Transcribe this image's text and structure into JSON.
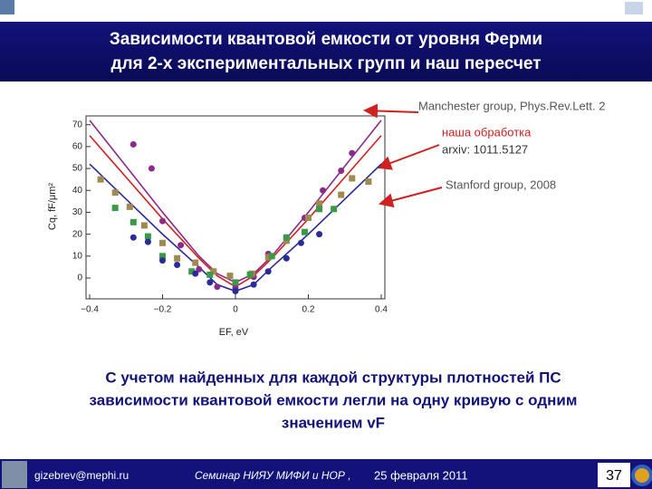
{
  "header": {
    "title": [
      "Зависимости  квантовой емкости от уровня  Ферми",
      "для 2-х экспериментальных групп и наш пересчет"
    ]
  },
  "chart_data": {
    "type": "line",
    "xlabel": "EF, eV",
    "ylabel": "Cq, fF/μm²",
    "xlim": [
      -0.41,
      0.41
    ],
    "ylim": [
      -9.5,
      74
    ],
    "xticks": [
      {
        "value": -0.4,
        "label": "−0.4"
      },
      {
        "value": -0.2,
        "label": "−0.2"
      },
      0,
      0.2,
      0.4
    ],
    "yticks": [
      0,
      10,
      20,
      30,
      40,
      50,
      60,
      70
    ],
    "annotations": [
      "Manchester group,  Phys.Rev.Lett. 2",
      "наша обработка",
      "arxiv: 1011.5127",
      "Stanford  group, 2008"
    ],
    "series": [
      {
        "style": "line",
        "color": "#8b2a8b",
        "x": [
          -0.4,
          -0.3,
          -0.2,
          -0.1,
          -0.05,
          0,
          0.05,
          0.1,
          0.2,
          0.3,
          0.4
        ],
        "values": [
          72,
          51,
          30,
          10,
          2,
          -2,
          2,
          10,
          30,
          51,
          72
        ]
      },
      {
        "style": "line",
        "color": "#d02020",
        "x": [
          -0.4,
          -0.3,
          -0.2,
          -0.1,
          -0.05,
          0,
          0.05,
          0.1,
          0.2,
          0.3,
          0.4
        ],
        "values": [
          65,
          46,
          27,
          9,
          1,
          -4,
          1,
          9,
          27,
          46,
          65
        ]
      },
      {
        "style": "line",
        "color": "#2a2a9a",
        "x": [
          -0.4,
          -0.3,
          -0.2,
          -0.1,
          -0.05,
          0,
          0.05,
          0.1,
          0.2,
          0.3,
          0.4
        ],
        "values": [
          52,
          36,
          20,
          5,
          -3,
          -6,
          -3,
          5,
          20,
          36,
          52
        ]
      },
      {
        "style": "circle",
        "color": "#8b2a8b",
        "x": [
          -0.28,
          -0.23,
          -0.2,
          -0.15,
          -0.1,
          -0.05,
          0,
          0.05,
          0.09,
          0.14,
          0.19,
          0.24,
          0.29,
          0.32
        ],
        "values": [
          61,
          50,
          26,
          15,
          4,
          -4,
          -4.5,
          0.5,
          11,
          18.5,
          27.5,
          40,
          49,
          57
        ]
      },
      {
        "style": "square",
        "color": "#a08a50",
        "x": [
          -0.37,
          -0.33,
          -0.29,
          -0.25,
          -0.2,
          -0.16,
          -0.11,
          -0.06,
          -0.015,
          0.045,
          0.09,
          0.14,
          0.2,
          0.23,
          0.29,
          0.32,
          0.365
        ],
        "values": [
          45,
          39,
          32.5,
          24,
          16,
          9,
          7,
          3,
          1,
          2,
          9.5,
          17,
          27.5,
          34,
          38,
          45.5,
          44
        ]
      },
      {
        "style": "square",
        "color": "#3a9a4a",
        "x": [
          -0.33,
          -0.28,
          -0.24,
          -0.2,
          -0.12,
          -0.07,
          0,
          0.04,
          0.1,
          0.14,
          0.19,
          0.23,
          0.27
        ],
        "values": [
          32,
          25.5,
          19,
          10,
          3,
          1.5,
          -2,
          1.5,
          10,
          18.5,
          21,
          31.5,
          31.5
        ]
      },
      {
        "style": "circle",
        "color": "#2a2a9a",
        "x": [
          -0.28,
          -0.24,
          -0.2,
          -0.16,
          -0.11,
          -0.07,
          0,
          0.05,
          0.09,
          0.14,
          0.18,
          0.23
        ],
        "values": [
          18.5,
          16.5,
          8,
          6,
          2,
          -2,
          -6,
          -3,
          3,
          9,
          16,
          20
        ]
      }
    ]
  },
  "body": [
    "С учетом найденных для каждой структуры плотностей ПС",
    "зависимости квантовой емкости  легли на одну кривую с одним",
    "значением vF"
  ],
  "footer": {
    "email": "gizebrev@mephi.ru",
    "seminar": "Семинар  НИЯУ МИФИ и НОР ,",
    "date": "25 февраля  2011",
    "page": "37"
  }
}
